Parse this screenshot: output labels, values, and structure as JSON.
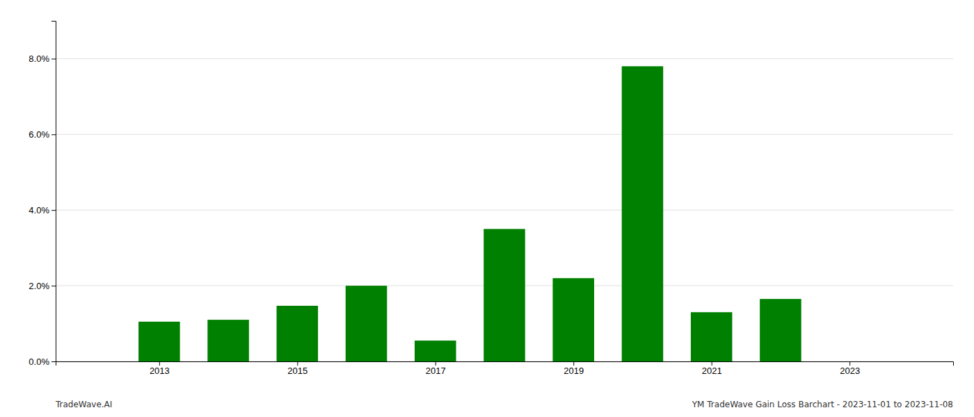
{
  "chart_data": {
    "type": "bar",
    "x": [
      2013,
      2014,
      2015,
      2016,
      2017,
      2018,
      2019,
      2020,
      2021,
      2022,
      2023
    ],
    "values": [
      0.0105,
      0.011,
      0.0147,
      0.02,
      0.0055,
      0.035,
      0.022,
      0.078,
      0.013,
      0.0165,
      0.0
    ],
    "color": "#008000",
    "xlim": [
      2011.5,
      2024.5
    ],
    "xticks": [
      2013,
      2015,
      2017,
      2019,
      2021,
      2023
    ],
    "ylim": [
      0.0,
      0.09
    ],
    "yticks": [
      {
        "value": 0.0,
        "label": "0.0%"
      },
      {
        "value": 0.02,
        "label": "2.0%"
      },
      {
        "value": 0.04,
        "label": "4.0%"
      },
      {
        "value": 0.06,
        "label": "6.0%"
      },
      {
        "value": 0.08,
        "label": "8.0%"
      }
    ],
    "grid": true,
    "annotations": [
      "TradeWave.AI",
      "YM TradeWave Gain Loss Barchart - 2023-11-01 to 2023-11-08"
    ]
  }
}
